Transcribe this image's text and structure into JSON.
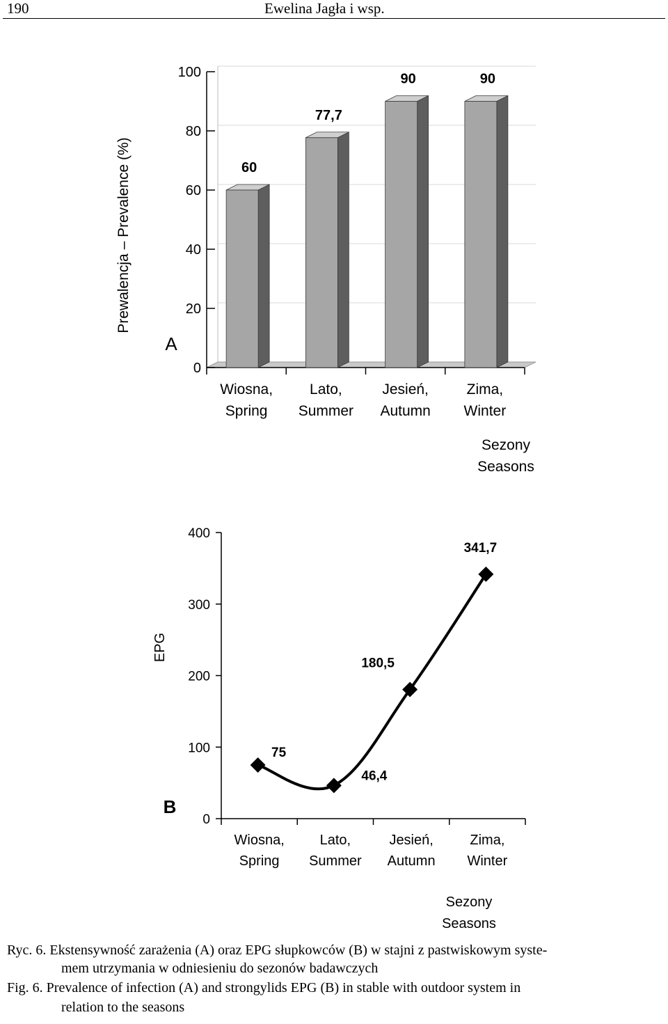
{
  "header": {
    "page_number": "190",
    "running_title": "Ewelina Jagła i wsp."
  },
  "chart_data": [
    {
      "type": "bar",
      "panel_label": "A",
      "ylabel": "Prewalencja – Prevalence (%)",
      "xlabel_lines": [
        "Sezony",
        "Seasons"
      ],
      "categories": [
        [
          "Wiosna,",
          "Spring"
        ],
        [
          "Lato,",
          "Summer"
        ],
        [
          "Jesień,",
          "Autumn"
        ],
        [
          "Zima,",
          "Winter"
        ]
      ],
      "values": [
        60,
        77.7,
        90,
        90
      ],
      "data_labels": [
        "60",
        "77,7",
        "90",
        "90"
      ],
      "yticks": [
        "0",
        "20",
        "40",
        "60",
        "80",
        "100"
      ],
      "ylim": [
        0,
        100
      ],
      "grid": true,
      "style": "3d",
      "colors": {
        "front": "#a6a6a6",
        "side": "#5e5e5e",
        "top": "#cfcfcf"
      }
    },
    {
      "type": "line",
      "panel_label": "B",
      "ylabel": "EPG",
      "xlabel_lines": [
        "Sezony",
        "Seasons"
      ],
      "categories": [
        [
          "Wiosna,",
          "Spring"
        ],
        [
          "Lato,",
          "Summer"
        ],
        [
          "Jesień,",
          "Autumn"
        ],
        [
          "Zima,",
          "Winter"
        ]
      ],
      "values": [
        75,
        46.4,
        180.5,
        341.7
      ],
      "data_labels": [
        "75",
        "46,4",
        "180,5",
        "341,7"
      ],
      "yticks": [
        "0",
        "100",
        "200",
        "300",
        "400"
      ],
      "ylim": [
        0,
        400
      ],
      "grid": false,
      "marker": "diamond",
      "smooth": true
    }
  ],
  "caption": {
    "pl_lines": [
      "Ryc. 6. Ekstensywność zarażenia (A) oraz EPG słupkowców (B) w stajni z pastwiskowym syste-",
      "mem utrzymania w odniesieniu do sezonów badawczych"
    ],
    "en_lines": [
      "Fig. 6. Prevalence of infection (A) and strongylids EPG (B) in stable with outdoor system in",
      "relation to the seasons"
    ]
  }
}
